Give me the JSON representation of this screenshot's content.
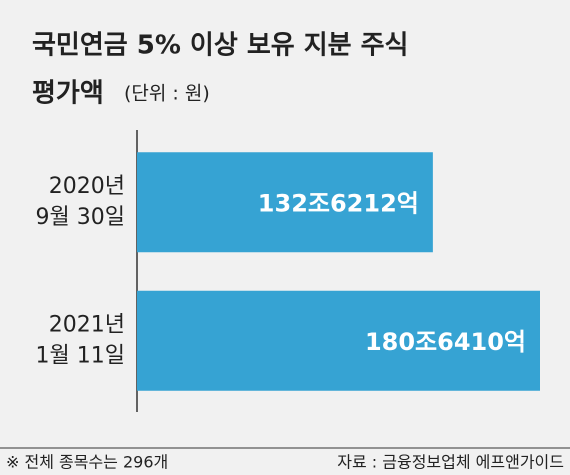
{
  "chart_data": {
    "type": "bar",
    "orientation": "horizontal",
    "title": "국민연금 5% 이상 보유 지분 주식",
    "subtitle": "평가액",
    "unit_note": "(단위 : 원)",
    "categories": [
      [
        "2020년",
        "9월 30일"
      ],
      [
        "2021년",
        "1월 11일"
      ]
    ],
    "values": [
      1326212,
      1806410
    ],
    "value_labels": [
      "132조6212억",
      "180조6410억"
    ],
    "color": "#36a3d3",
    "footnote": "※ 전체 종목수는 296개",
    "source": "자료 : 금융정보업체 에프앤가이드"
  }
}
